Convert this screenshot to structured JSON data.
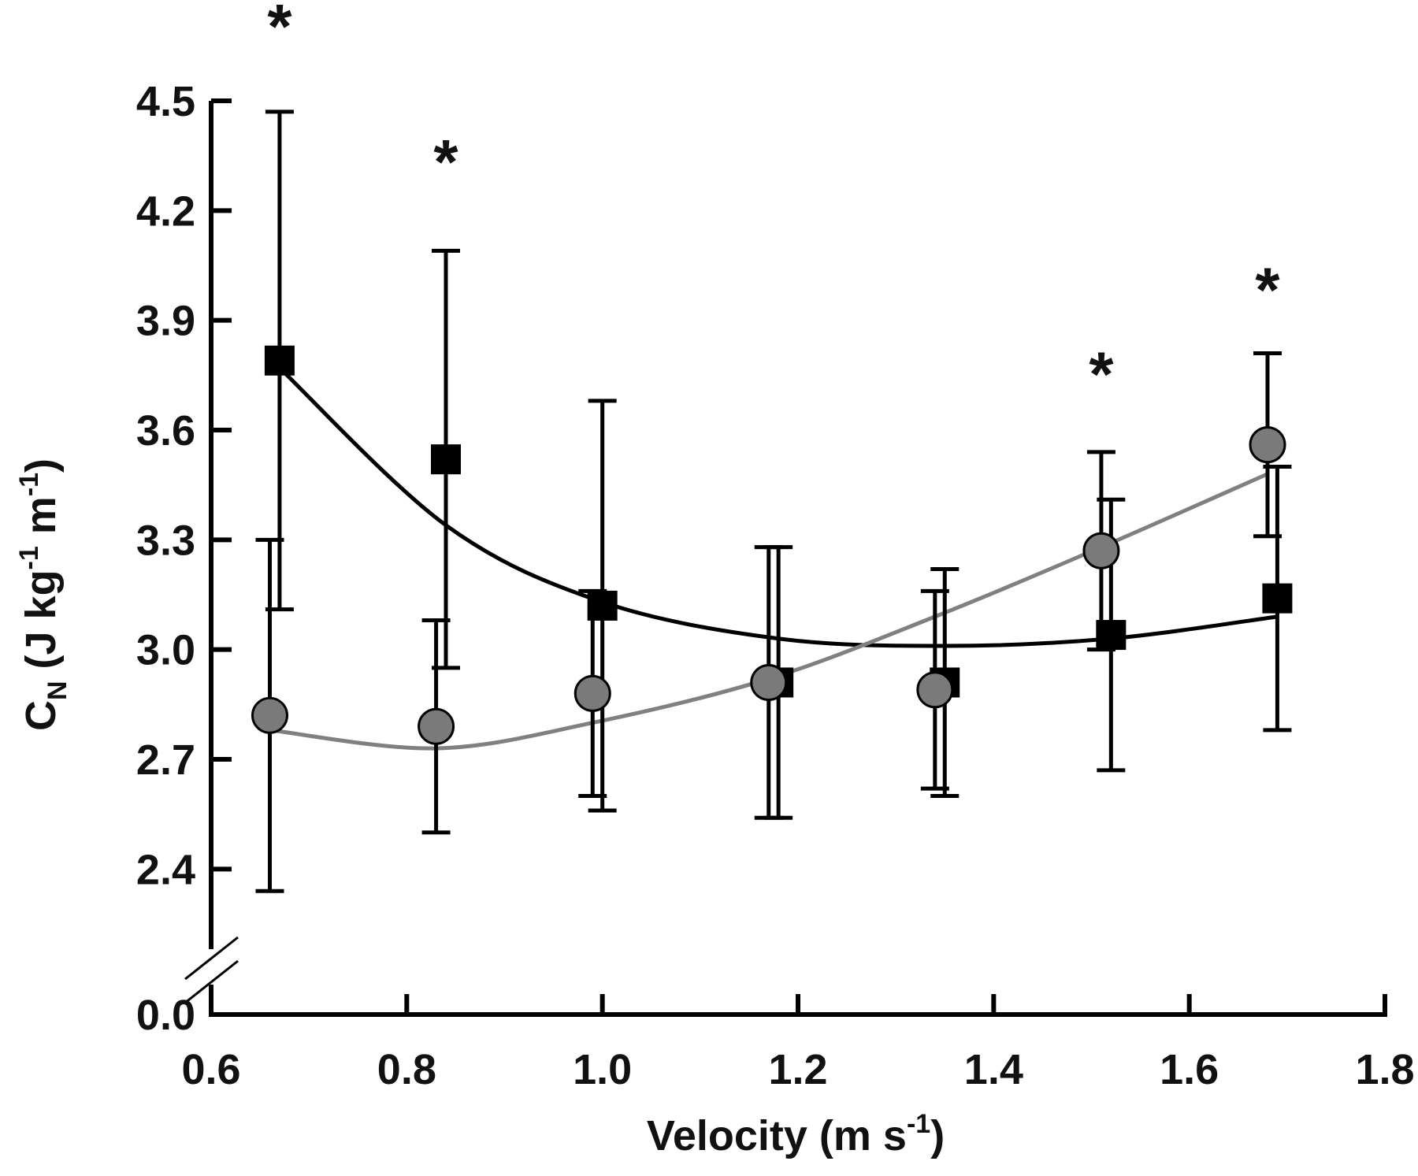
{
  "chart_data": {
    "type": "line",
    "title": "",
    "xlabel": "Velocity (m s-1)",
    "xlabel_parts": {
      "main": "Velocity (m s",
      "sup": "-1",
      "close": ")"
    },
    "ylabel": "CN (J kg-1 m-1)",
    "ylabel_parts": {
      "c": "C",
      "sub": "N",
      "open": " (J kg",
      "sup1": "-1",
      "m": " m",
      "sup2": "-1",
      "close": ")"
    },
    "xlim": [
      0.6,
      1.8
    ],
    "ylim": [
      2.25,
      4.5
    ],
    "axis_break": true,
    "x_ticks": [
      "0.6",
      "0.8",
      "1.0",
      "1.2",
      "1.4",
      "1.6",
      "1.8"
    ],
    "y_ticks": [
      "4.5",
      "4.2",
      "3.9",
      "3.6",
      "3.3",
      "3.0",
      "2.7",
      "2.4"
    ],
    "y_zero_label": "0.0",
    "grid": false,
    "legend": "none",
    "series": [
      {
        "marker": "square",
        "color": "#000000",
        "fit_color": "#000000",
        "x": [
          0.67,
          0.84,
          1.0,
          1.18,
          1.35,
          1.52,
          1.69
        ],
        "y": [
          3.79,
          3.52,
          3.12,
          2.91,
          2.91,
          3.04,
          3.14
        ],
        "err": [
          0.68,
          0.57,
          0.56,
          0.37,
          0.31,
          0.37,
          0.36
        ],
        "fit_y": [
          3.77,
          3.34,
          3.13,
          3.03,
          3.01,
          3.03,
          3.09
        ]
      },
      {
        "marker": "circle",
        "color": "#7a7a7a",
        "fit_color": "#808080",
        "x": [
          0.66,
          0.83,
          0.99,
          1.17,
          1.34,
          1.51,
          1.68
        ],
        "y": [
          2.82,
          2.79,
          2.88,
          2.91,
          2.89,
          3.27,
          3.56
        ],
        "err": [
          0.48,
          0.29,
          0.28,
          0.37,
          0.27,
          0.27,
          0.25
        ],
        "fit_y": [
          2.78,
          2.73,
          2.8,
          2.92,
          3.09,
          3.28,
          3.48
        ]
      }
    ],
    "annotations": [
      {
        "text": "*",
        "x": 0.67,
        "y": 4.73
      },
      {
        "text": "*",
        "x": 0.84,
        "y": 4.36
      },
      {
        "text": "*",
        "x": 1.51,
        "y": 3.78
      },
      {
        "text": "*",
        "x": 1.68,
        "y": 4.01
      }
    ]
  }
}
